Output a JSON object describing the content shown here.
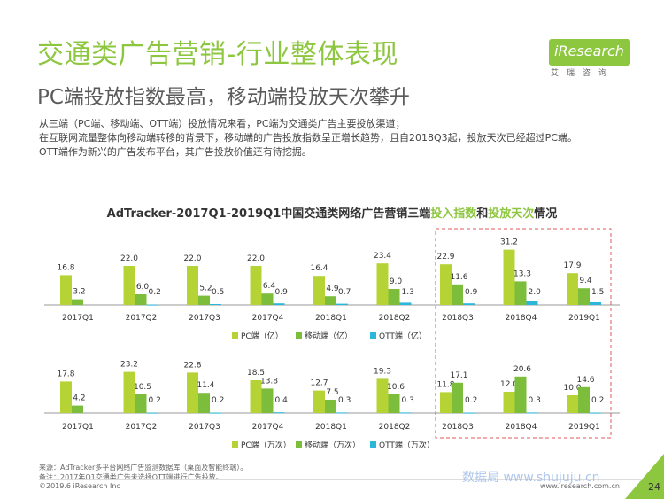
{
  "header": {
    "title": "交通类广告营销-行业整体表现",
    "subtitle": "PC端投放指数最高，移动端投放天次攀升"
  },
  "description": [
    "从三端（PC端、移动端、OTT端）投放情况来看，PC端为交通类广告主要投放渠道；",
    "在互联网流量整体向移动端转移的背景下，移动端的广告投放指数呈正增长趋势，且自2018Q3起，投放天次已经超过PC端。",
    "OTT端作为新兴的广告发布平台，其广告投放价值还有待挖掘。"
  ],
  "logo": {
    "name": "iResearch",
    "tagline": "艾瑞咨询"
  },
  "chart_title": {
    "part1": "AdTracker-2017Q1-2019Q1中国交通类网络广告营销三端",
    "part2": "投入指数",
    "part3": "和",
    "part4": "投放天次",
    "part5": "情况"
  },
  "colors": {
    "pc": "#b5d334",
    "mobile": "#7cbd3c",
    "ott": "#2ab7d9",
    "highlight_box": "#e05a5a",
    "accent": "#8dc63f"
  },
  "chart_data": [
    {
      "type": "bar",
      "categories": [
        "2017Q1",
        "2017Q2",
        "2017Q3",
        "2017Q4",
        "2018Q1",
        "2018Q2",
        "2018Q3",
        "2018Q4",
        "2019Q1"
      ],
      "series": [
        {
          "name": "PC端（亿）",
          "values": [
            16.8,
            22.0,
            22.0,
            22.0,
            16.4,
            23.4,
            22.9,
            31.2,
            17.9
          ],
          "labels": [
            "16.8",
            "22.0",
            "22.0",
            "22.0",
            "16.4",
            "23.4",
            "22.9",
            "31.2",
            "17.9"
          ]
        },
        {
          "name": "移动端（亿）",
          "values": [
            3.2,
            6.0,
            5.2,
            6.4,
            4.9,
            9.0,
            11.6,
            13.3,
            9.4
          ],
          "labels": [
            "3.2",
            "6.0",
            "5.2",
            "6.4",
            "4.9",
            "9.0",
            "11.6",
            "13.3",
            "9.4"
          ]
        },
        {
          "name": "OTT端（亿）",
          "values": [
            0,
            0.2,
            0.5,
            0.9,
            0.7,
            1.3,
            0.9,
            2.0,
            1.5
          ],
          "labels": [
            "",
            "0.2",
            "0.5",
            "0.9",
            "0.7",
            "1.3",
            "0.9",
            "2.0",
            "1.5"
          ]
        }
      ],
      "legend": "bottom"
    },
    {
      "type": "bar",
      "categories": [
        "2017Q1",
        "2017Q2",
        "2017Q3",
        "2017Q4",
        "2018Q1",
        "2018Q2",
        "2018Q3",
        "2018Q4",
        "2019Q1"
      ],
      "series": [
        {
          "name": "PC端（万次）",
          "values": [
            17.8,
            23.2,
            22.8,
            18.5,
            12.7,
            19.3,
            11.8,
            12.0,
            10.0
          ],
          "labels": [
            "17.8",
            "23.2",
            "22.8",
            "18.5",
            "12.7",
            "19.3",
            "11.8",
            "12.0",
            "10.0"
          ]
        },
        {
          "name": "移动端（万次）",
          "values": [
            4.2,
            10.5,
            11.4,
            13.8,
            7.5,
            10.6,
            17.1,
            20.6,
            14.6
          ],
          "labels": [
            "4.2",
            "10.5",
            "11.4",
            "13.8",
            "7.5",
            "10.6",
            "17.1",
            "20.6",
            "14.6"
          ]
        },
        {
          "name": "OTT端（万次）",
          "values": [
            0,
            0.2,
            0.2,
            0.4,
            0.3,
            0.3,
            0.2,
            0.3,
            0.2
          ],
          "labels": [
            "",
            "0.2",
            "0.2",
            "0.4",
            "0.3",
            "0.3",
            "0.2",
            "0.3",
            "0.2"
          ]
        }
      ],
      "legend": "bottom"
    }
  ],
  "footer": {
    "source": "来源：AdTracker多平台网络广告监测数据库（桌面及智能终端）。",
    "note": "备注：2017年Q1交通类广告未选择OTT端进行广告投放。",
    "copyright": "©2019.6 iResearch Inc",
    "url": "www.iresearch.com.cn",
    "watermark": "数据局 www.shujuju.cn",
    "page": "24"
  }
}
